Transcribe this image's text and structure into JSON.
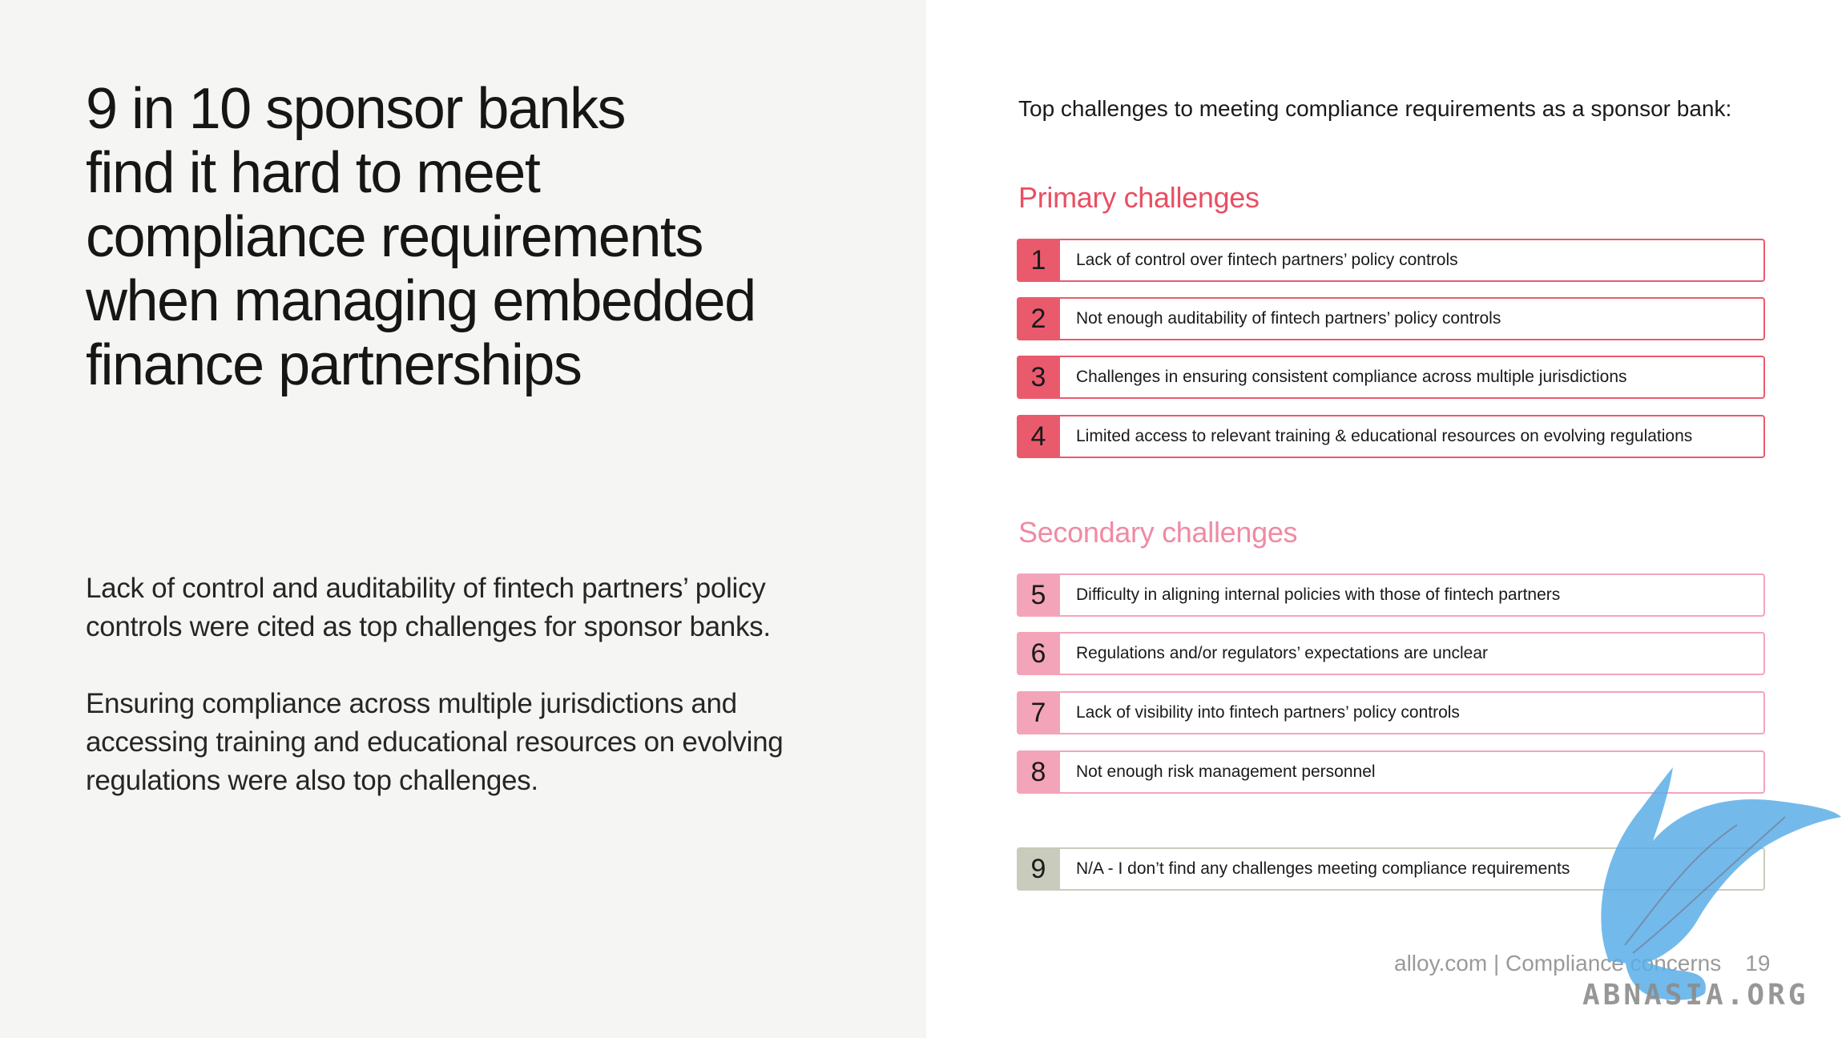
{
  "left": {
    "headline_lines": [
      "9 in 10 sponsor banks",
      "find it hard to meet",
      "compliance requirements",
      "when managing embedded",
      "finance partnerships"
    ],
    "paragraph1_lines": [
      "Lack of control and auditability of fintech partners’ policy",
      "controls were cited as top challenges for sponsor banks."
    ],
    "paragraph2_lines": [
      "Ensuring compliance across multiple jurisdictions and",
      "accessing training and educational resources on evolving",
      "regulations were also top challenges."
    ]
  },
  "right": {
    "title": "Top challenges to meeting compliance requirements as a sponsor bank:",
    "primary_heading": "Primary challenges",
    "secondary_heading": "Secondary challenges",
    "primary_items": [
      {
        "num": "1",
        "label": "Lack of control over fintech partners’ policy controls"
      },
      {
        "num": "2",
        "label": "Not enough auditability of fintech partners’ policy controls"
      },
      {
        "num": "3",
        "label": "Challenges in ensuring consistent compliance across multiple jurisdictions"
      },
      {
        "num": "4",
        "label": "Limited access to relevant training & educational resources on evolving regulations"
      }
    ],
    "secondary_items": [
      {
        "num": "5",
        "label": "Difficulty in aligning internal policies with those of fintech partners"
      },
      {
        "num": "6",
        "label": "Regulations and/or regulators’ expectations are unclear"
      },
      {
        "num": "7",
        "label": "Lack of visibility into fintech partners’ policy controls"
      },
      {
        "num": "8",
        "label": "Not enough risk management personnel"
      }
    ],
    "other_item": {
      "num": "9",
      "label": "N/A - I don’t find any challenges meeting compliance requirements"
    }
  },
  "footer": {
    "source": "alloy.com | Compliance concerns",
    "page_number": "19"
  },
  "watermark": {
    "text": "ABNASIA.ORG"
  },
  "colors": {
    "primary": "#ea5a6d",
    "secondary": "#f4a4b9",
    "neutral": "#c9cbbd",
    "left_bg": "#f5f5f3"
  }
}
